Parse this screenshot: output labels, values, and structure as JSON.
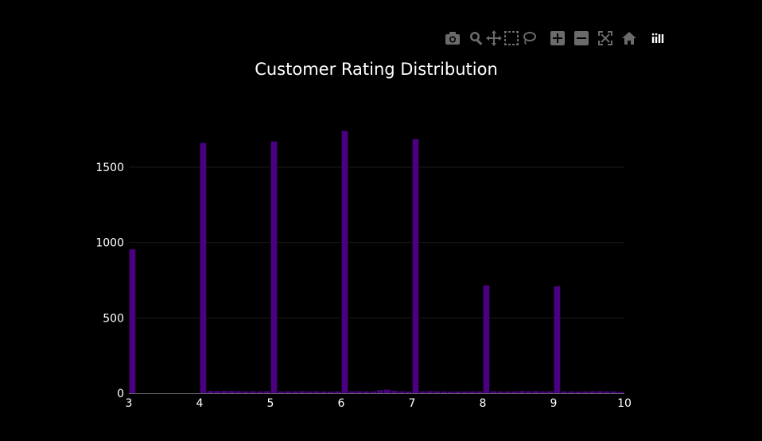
{
  "modebar": {
    "buttons": [
      {
        "icon": "camera-icon",
        "title": "Download plot as a png"
      },
      {
        "icon": "zoom-icon",
        "title": "Zoom"
      },
      {
        "icon": "pan-icon",
        "title": "Pan"
      },
      {
        "icon": "box-select-icon",
        "title": "Box Select"
      },
      {
        "icon": "lasso-select-icon",
        "title": "Lasso Select"
      },
      {
        "icon": "zoom-in-icon",
        "title": "Zoom in"
      },
      {
        "icon": "zoom-out-icon",
        "title": "Zoom out"
      },
      {
        "icon": "autoscale-icon",
        "title": "Autoscale"
      },
      {
        "icon": "reset-axes-icon",
        "title": "Reset axes"
      },
      {
        "icon": "plotly-logo-icon",
        "title": "Produced with Plotly"
      }
    ]
  },
  "colors": {
    "background": "#000000",
    "bar": "#4b0082",
    "text": "#ffffff",
    "grid": "#1a1a1a"
  },
  "chart_data": {
    "type": "bar",
    "title": "Customer Rating Distribution",
    "xlabel": "",
    "ylabel": "",
    "xlim": [
      3,
      10
    ],
    "ylim": [
      0,
      1880
    ],
    "xticks": [
      "3",
      "4",
      "5",
      "6",
      "7",
      "8",
      "9",
      "10"
    ],
    "yticks": [
      "0",
      "500",
      "1000",
      "1500"
    ],
    "ytick_values": [
      0,
      500,
      1000,
      1500
    ],
    "bin_width": 0.1,
    "x": [
      3.0,
      3.1,
      3.2,
      3.3,
      3.4,
      3.5,
      3.6,
      3.7,
      3.8,
      3.9,
      4.0,
      4.1,
      4.2,
      4.3,
      4.4,
      4.5,
      4.6,
      4.7,
      4.8,
      4.9,
      5.0,
      5.1,
      5.2,
      5.3,
      5.4,
      5.5,
      5.6,
      5.7,
      5.8,
      5.9,
      6.0,
      6.1,
      6.2,
      6.3,
      6.4,
      6.5,
      6.6,
      6.7,
      6.8,
      6.9,
      7.0,
      7.1,
      7.2,
      7.3,
      7.4,
      7.5,
      7.6,
      7.7,
      7.8,
      7.9,
      8.0,
      8.1,
      8.2,
      8.3,
      8.4,
      8.5,
      8.6,
      8.7,
      8.8,
      8.9,
      9.0,
      9.1,
      9.2,
      9.3,
      9.4,
      9.5,
      9.6,
      9.7,
      9.8,
      9.9
    ],
    "values": [
      955,
      0,
      0,
      0,
      0,
      0,
      0,
      0,
      0,
      0,
      1660,
      15,
      15,
      16,
      15,
      14,
      12,
      13,
      12,
      14,
      1670,
      12,
      13,
      12,
      14,
      12,
      13,
      12,
      11,
      12,
      1740,
      13,
      14,
      12,
      12,
      20,
      24,
      16,
      13,
      12,
      1685,
      13,
      14,
      13,
      12,
      11,
      12,
      12,
      12,
      13,
      715,
      13,
      12,
      12,
      12,
      15,
      14,
      14,
      12,
      13,
      710,
      12,
      12,
      11,
      12,
      13,
      14,
      12,
      12,
      8
    ]
  }
}
